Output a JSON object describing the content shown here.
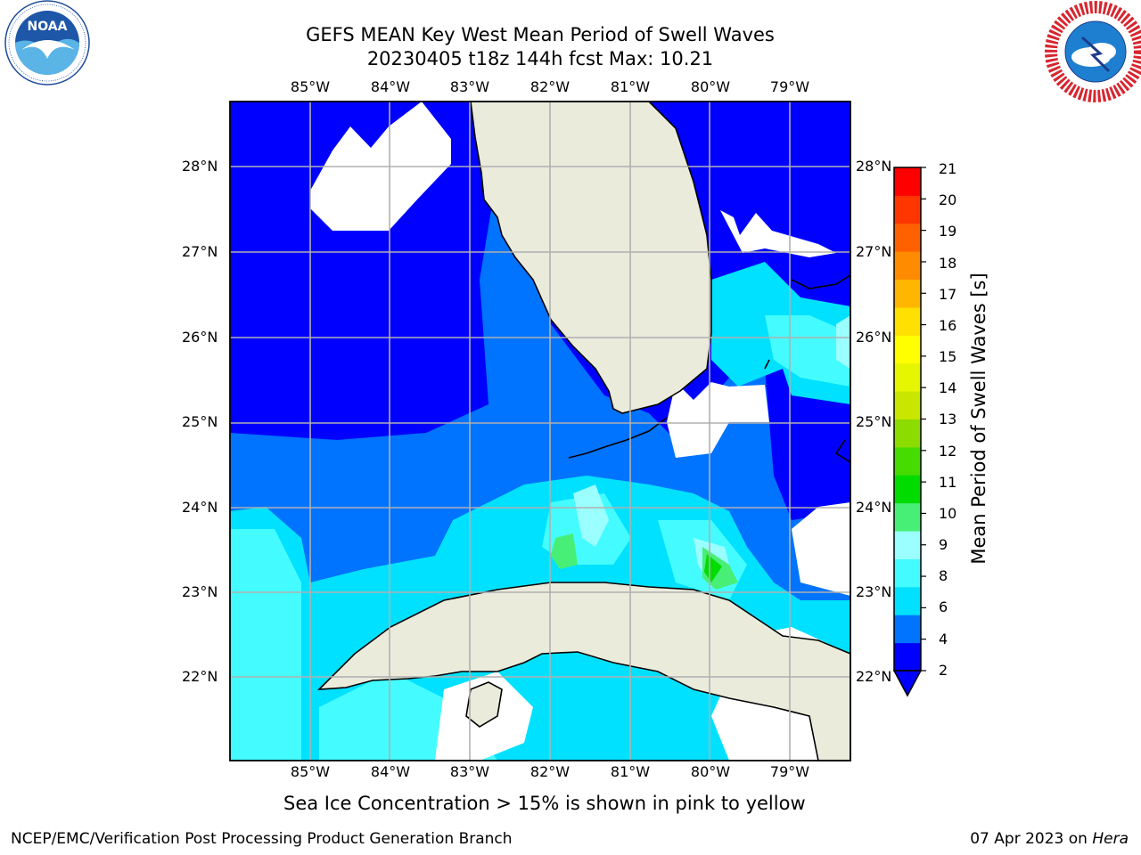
{
  "title_line1": "GEFS MEAN Key West Mean Period of Swell Waves",
  "title_line2": "20230405 t18z 144h fcst   Max: 10.21",
  "longitude_labels": [
    "85°W",
    "84°W",
    "83°W",
    "82°W",
    "81°W",
    "80°W",
    "79°W"
  ],
  "latitude_labels": [
    "28°N",
    "27°N",
    "26°N",
    "25°N",
    "24°N",
    "23°N",
    "22°N"
  ],
  "colorbar": {
    "label": "Mean Period of Swell Waves [s]",
    "ticks": [
      "21",
      "20",
      "19",
      "18",
      "17",
      "16",
      "15",
      "14",
      "13",
      "12",
      "11",
      "10",
      "9",
      "8",
      "6",
      "4",
      "2"
    ],
    "colors": [
      "#0000ff",
      "#0073ff",
      "#00e1ff",
      "#44fcff",
      "#9bffff",
      "#48ef76",
      "#00dc00",
      "#46dc00",
      "#8ddc00",
      "#c8e600",
      "#e6f500",
      "#ffff00",
      "#ffe000",
      "#ffb600",
      "#ff8c00",
      "#ff6100",
      "#ff3600",
      "#ff0000"
    ],
    "extend": "min"
  },
  "footnote": "Sea Ice Concentration > 15% is shown in pink to yellow",
  "credit_left": "NCEP/EMC/Verification Post Processing Product Generation Branch",
  "credit_date": "07 Apr 2023 on",
  "credit_host": "Hera",
  "logos": {
    "left": "NOAA",
    "left_ring": "NATIONAL OCEANIC AND ATMOSPHERIC ADMINISTRATION · U.S. DEPARTMENT OF COMMERCE",
    "right_ring": "NATIONAL WEATHER SERVICE"
  },
  "map_colors": {
    "land": "#ebebdc",
    "grid": "#b0b0b0",
    "masked": "#ffffff"
  }
}
